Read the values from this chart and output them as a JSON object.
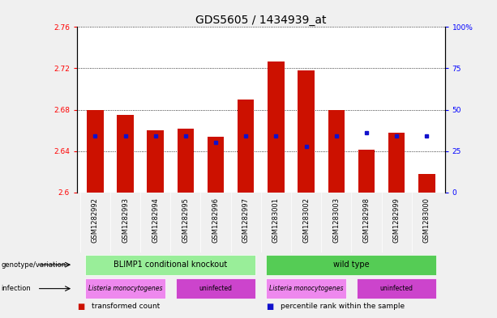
{
  "title": "GDS5605 / 1434939_at",
  "samples": [
    "GSM1282992",
    "GSM1282993",
    "GSM1282994",
    "GSM1282995",
    "GSM1282996",
    "GSM1282997",
    "GSM1283001",
    "GSM1283002",
    "GSM1283003",
    "GSM1282998",
    "GSM1282999",
    "GSM1283000"
  ],
  "red_values": [
    2.68,
    2.675,
    2.66,
    2.662,
    2.654,
    2.69,
    2.727,
    2.718,
    2.68,
    2.641,
    2.658,
    2.618
  ],
  "blue_pct": [
    34,
    34,
    34,
    34,
    30,
    34,
    34,
    28,
    34,
    36,
    34,
    34
  ],
  "y_min": 2.6,
  "y_max": 2.76,
  "y_ticks": [
    2.6,
    2.64,
    2.68,
    2.72,
    2.76
  ],
  "y2_ticks": [
    0,
    25,
    50,
    75,
    100
  ],
  "y2_labels": [
    "0",
    "25",
    "50",
    "75",
    "100%"
  ],
  "bar_color": "#cc1100",
  "dot_color": "#1111cc",
  "plot_bg": "#ffffff",
  "sample_bg": "#cccccc",
  "genotype_groups": [
    {
      "label": "BLIMP1 conditional knockout",
      "start": 0,
      "end": 5,
      "color": "#99ee99"
    },
    {
      "label": "wild type",
      "start": 6,
      "end": 11,
      "color": "#55cc55"
    }
  ],
  "infection_groups": [
    {
      "label": "Listeria monocytogenes",
      "start": 0,
      "end": 2,
      "color": "#ee88ee"
    },
    {
      "label": "uninfected",
      "start": 3,
      "end": 5,
      "color": "#cc44cc"
    },
    {
      "label": "Listeria monocytogenes",
      "start": 6,
      "end": 8,
      "color": "#ee88ee"
    },
    {
      "label": "uninfected",
      "start": 9,
      "end": 11,
      "color": "#cc44cc"
    }
  ],
  "legend_items": [
    {
      "color": "#cc1100",
      "label": "transformed count"
    },
    {
      "color": "#1111cc",
      "label": "percentile rank within the sample"
    }
  ],
  "title_fontsize": 10,
  "tick_fontsize": 6.5,
  "sample_fontsize": 6,
  "annot_fontsize": 7,
  "bar_width": 0.55
}
